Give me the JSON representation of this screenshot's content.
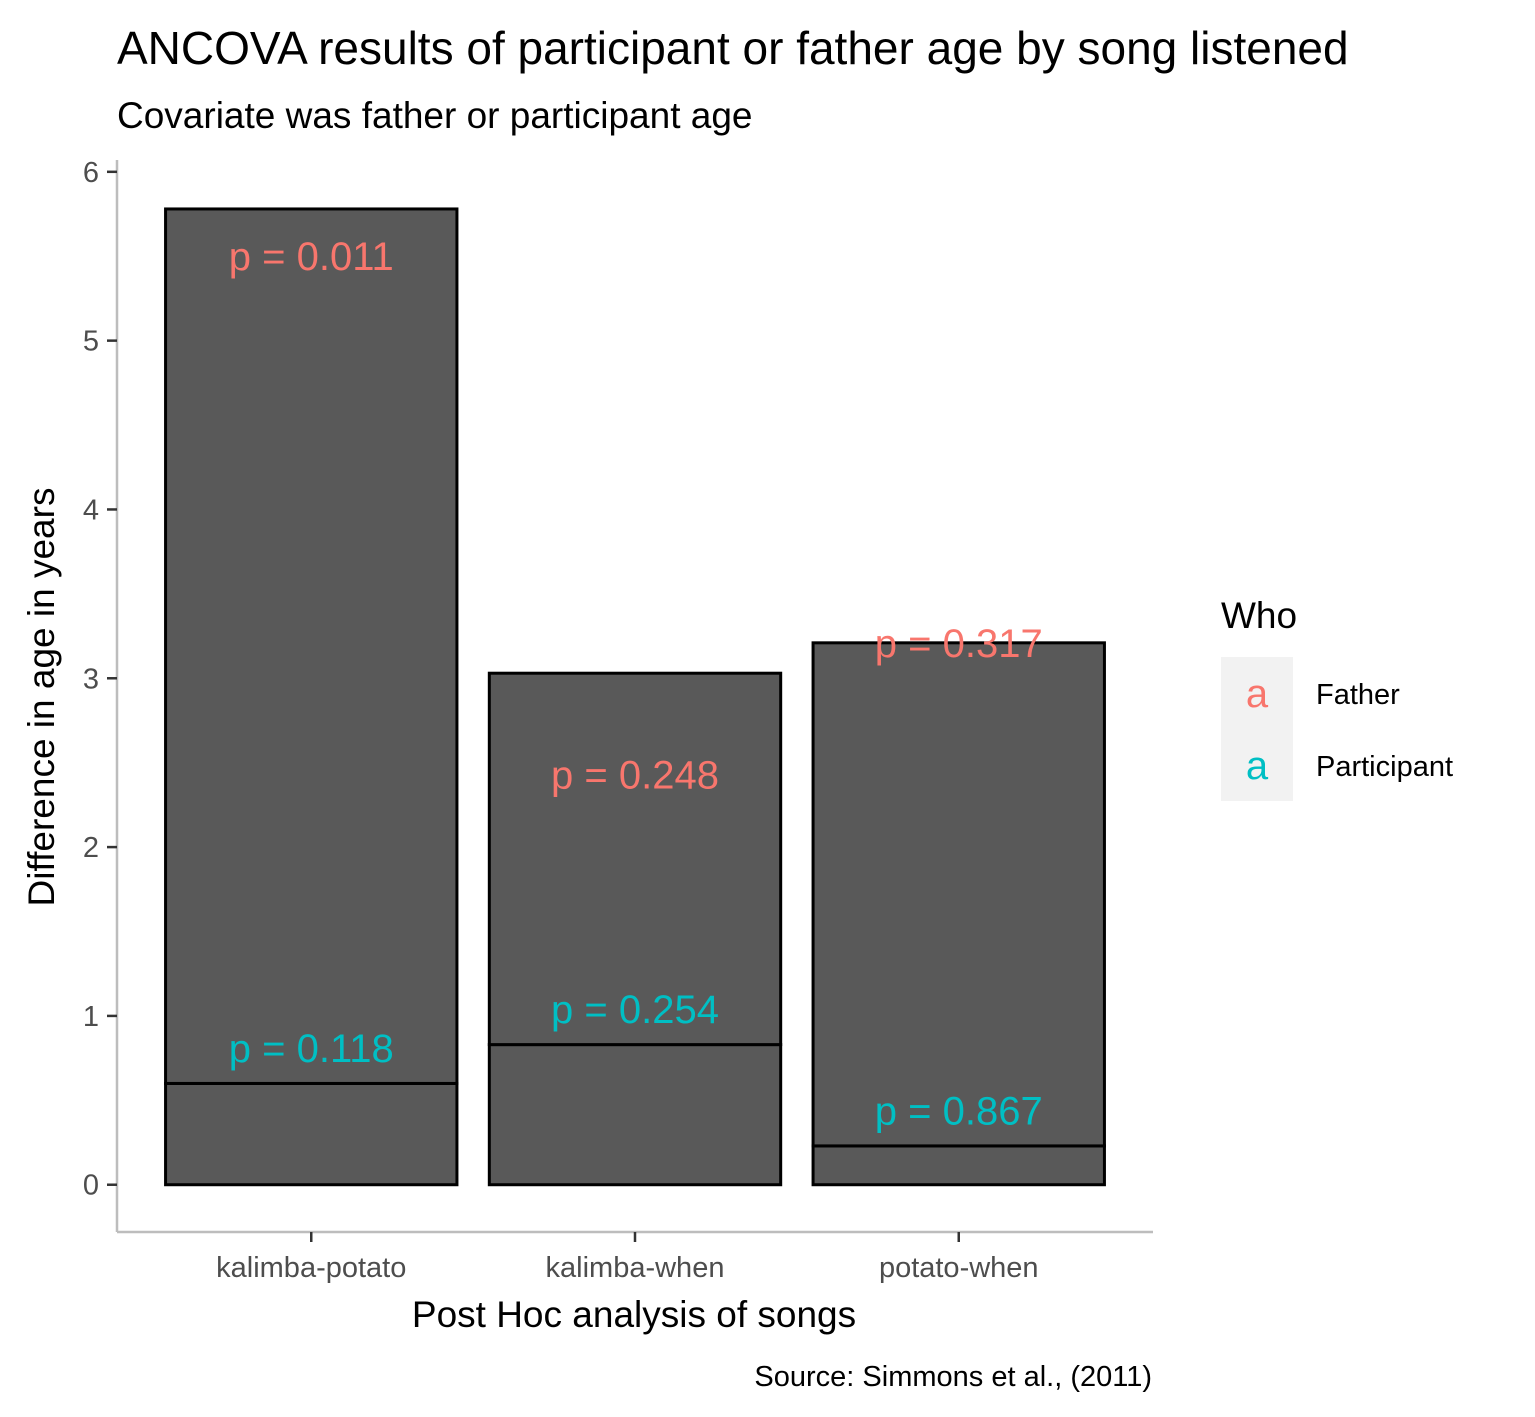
{
  "chart_data": {
    "type": "bar",
    "title": "ANCOVA results of participant or father age by song listened",
    "subtitle": "Covariate was father or participant age",
    "xlabel": "Post Hoc analysis of songs",
    "ylabel": "Difference in age in years",
    "caption": "Source: Simmons et al., (2011)",
    "categories": [
      "kalimba-potato",
      "kalimba-when",
      "potato-when"
    ],
    "ylim": [
      -0.28,
      6.07
    ],
    "yticks": [
      0,
      1,
      2,
      3,
      4,
      5,
      6
    ],
    "bar_fill": "#595959",
    "bar_outline": "#000000",
    "series": [
      {
        "name": "Participant",
        "values": [
          0.6,
          0.83,
          0.23
        ],
        "labels": [
          "p = 0.118",
          "p = 0.254",
          "p = 0.867"
        ],
        "label_y": [
          0.81,
          1.04,
          0.44
        ],
        "color": "#00BFC4"
      },
      {
        "name": "Father",
        "values": [
          5.18,
          2.2,
          2.98
        ],
        "labels": [
          "p = 0.011",
          "p = 0.248",
          "p = 0.317"
        ],
        "label_y": [
          5.5,
          2.43,
          3.21
        ],
        "color": "#F8766D"
      }
    ],
    "legend": {
      "title": "Who",
      "position": "right",
      "items": [
        {
          "key": "a",
          "label": "Father",
          "color": "#F8766D"
        },
        {
          "key": "a",
          "label": "Participant",
          "color": "#00BFC4"
        }
      ]
    },
    "grid": false
  }
}
